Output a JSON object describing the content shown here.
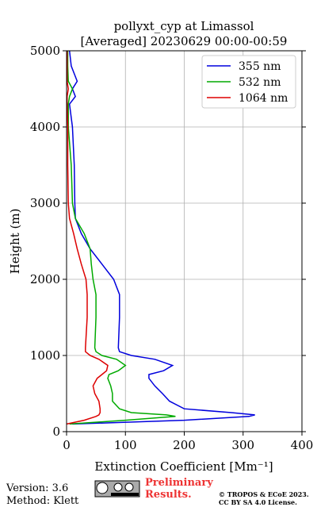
{
  "chart_data": {
    "type": "line",
    "title": "pollyxt_cyp at Limassol",
    "subtitle": "[Averaged] 20230629 00:00-00:59",
    "x_label": "Extinction Coefficient [Mm⁻¹]",
    "y_label": "Height (m)",
    "y": [
      100,
      150,
      200,
      220,
      250,
      300,
      400,
      500,
      600,
      700,
      750,
      800,
      870,
      950,
      1000,
      1050,
      1100,
      1500,
      1800,
      2000,
      2200,
      2400,
      2600,
      2800,
      3000,
      3500,
      4000,
      4300,
      4400,
      4500,
      4600,
      4800,
      5000
    ],
    "series": [
      {
        "name": "355 nm",
        "color": "#0000dd",
        "x": [
          10,
          200,
          310,
          320,
          280,
          200,
          175,
          163,
          150,
          140,
          140,
          165,
          180,
          150,
          110,
          90,
          88,
          90,
          90,
          80,
          60,
          40,
          25,
          15,
          14,
          13,
          10,
          5,
          15,
          10,
          18,
          8,
          5
        ]
      },
      {
        "name": "532 nm",
        "color": "#00aa00",
        "x": [
          5,
          100,
          185,
          170,
          110,
          90,
          78,
          78,
          75,
          70,
          72,
          88,
          100,
          85,
          60,
          50,
          48,
          50,
          50,
          45,
          42,
          40,
          30,
          15,
          10,
          8,
          3,
          3,
          5,
          10,
          3,
          2,
          2
        ]
      },
      {
        "name": "1064 nm",
        "color": "#dd0000",
        "x": [
          0,
          30,
          50,
          55,
          57,
          57,
          55,
          48,
          45,
          52,
          60,
          68,
          70,
          55,
          40,
          32,
          32,
          35,
          35,
          33,
          25,
          18,
          12,
          5,
          3,
          2,
          2,
          1,
          1,
          3,
          1,
          1,
          1
        ]
      }
    ],
    "xlim": [
      0,
      400
    ],
    "xticks": [
      0,
      100,
      200,
      300,
      400
    ],
    "ylim": [
      0,
      5000
    ],
    "yticks": [
      0,
      1000,
      2000,
      3000,
      4000,
      5000
    ],
    "grid": true,
    "legend": "upper right"
  },
  "footer": {
    "version": "Version: 3.6",
    "method": "Method: Klett",
    "notice": "Preliminary Results.",
    "copyright": "© TROPOS & ECoE 2023.",
    "license": "CC BY SA 4.0 License."
  }
}
